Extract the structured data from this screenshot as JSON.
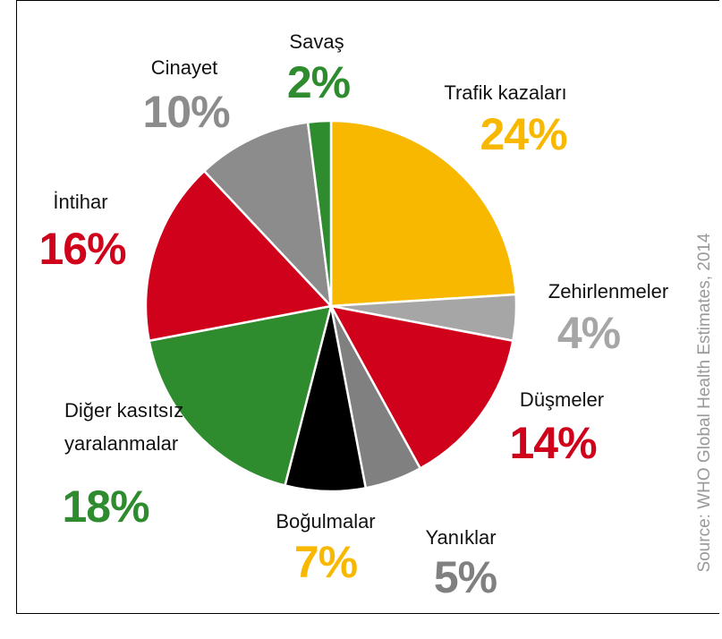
{
  "chart_data": {
    "type": "pie",
    "categories": [
      "Trafik kazaları",
      "Zehirlenmeler",
      "Düşmeler",
      "Yanıklar",
      "Boğulmalar",
      "Diğer kasıtsız yaralanmalar",
      "İntihar",
      "Cinayet",
      "Savaş"
    ],
    "values": [
      24,
      4,
      14,
      5,
      7,
      18,
      16,
      10,
      2
    ],
    "value_labels": [
      "24%",
      "4%",
      "14%",
      "5%",
      "7%",
      "18%",
      "16%",
      "10%",
      "2%"
    ],
    "colors": [
      "#f9b800",
      "#a6a6a6",
      "#d0021b",
      "#808080",
      "#000000",
      "#2e8b2e",
      "#d0021b",
      "#8c8c8c",
      "#2e8b2e"
    ],
    "label_colors": [
      "#f9b800",
      "#a6a6a6",
      "#d0021b",
      "#808080",
      "#f9b800",
      "#2e8b2e",
      "#d0021b",
      "#8c8c8c",
      "#2e8b2e"
    ],
    "source": "Source: WHO Global Health Estimates, 2014"
  }
}
